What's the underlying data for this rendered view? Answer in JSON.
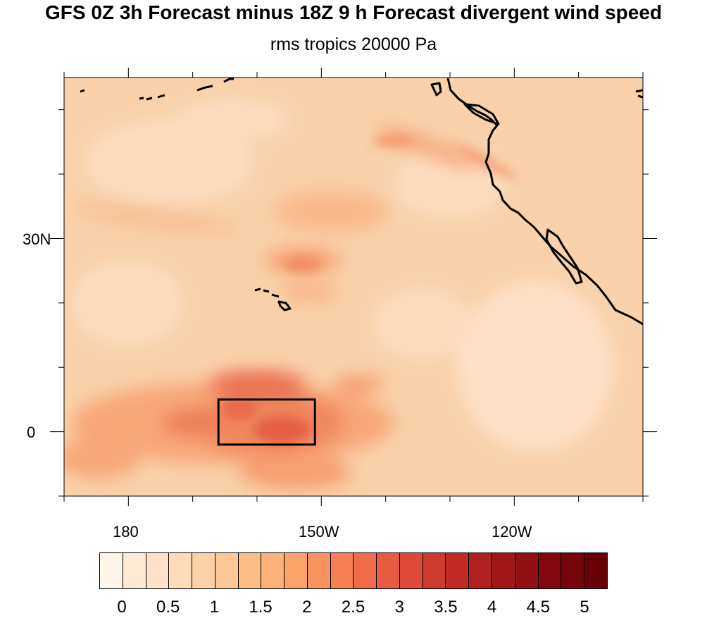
{
  "title": "GFS 0Z 3h Forecast minus 18Z 9 h Forecast divergent wind speed",
  "subtitle": "rms tropics 20000 Pa",
  "map": {
    "projection": "cylindrical-equidistant",
    "lon_range": [
      170,
      260
    ],
    "lat_range": [
      -10,
      55
    ],
    "lon_ticks": [
      {
        "lon": 180,
        "label": "180"
      },
      {
        "lon": 210,
        "label": "150W"
      },
      {
        "lon": 240,
        "label": "120W"
      }
    ],
    "lat_ticks": [
      {
        "lat": 30,
        "label": "30N"
      },
      {
        "lat": 0,
        "label": "0"
      }
    ],
    "box_region": {
      "lon": [
        194,
        209
      ],
      "lat": [
        -2,
        5
      ]
    },
    "background_color": "#fad1aa"
  },
  "colorbar": {
    "labels": [
      "0",
      "0.5",
      "1",
      "1.5",
      "2",
      "2.5",
      "3",
      "3.5",
      "4",
      "4.5",
      "5"
    ],
    "colors": [
      "#fff5eb",
      "#fee9d6",
      "#fde4c9",
      "#fddcba",
      "#fdd2a8",
      "#fdc896",
      "#fdbd86",
      "#fcb07a",
      "#fca46c",
      "#f9935f",
      "#f67f53",
      "#f06b4a",
      "#e85b43",
      "#dd4a3a",
      "#cf3a30",
      "#c02b25",
      "#b0201e",
      "#a11718",
      "#921012",
      "#83080e",
      "#75040b",
      "#680009"
    ]
  }
}
